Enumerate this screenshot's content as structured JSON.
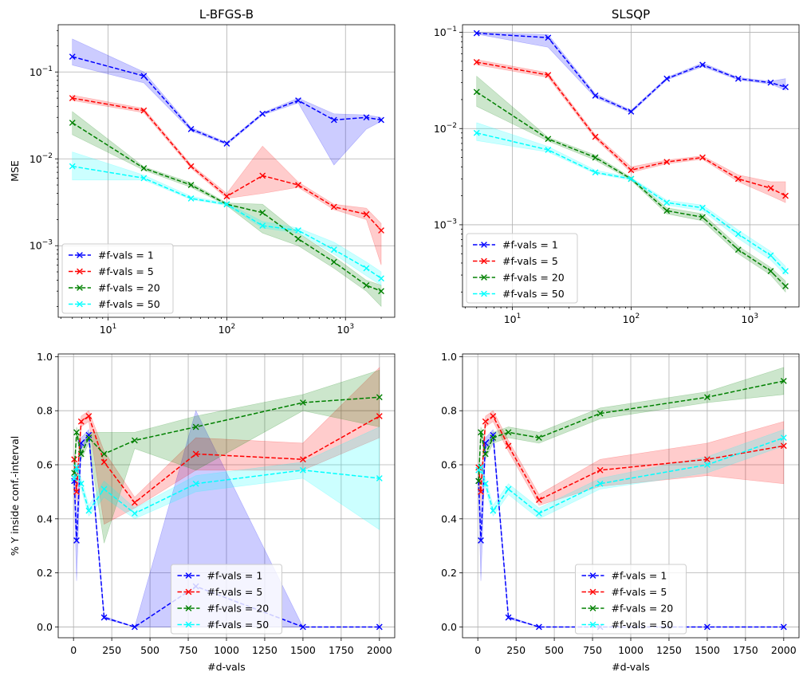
{
  "chart_data": [
    {
      "type": "line",
      "title": "L-BFGS-B",
      "xlabel": "",
      "ylabel": "MSE",
      "xscale": "log",
      "yscale": "log",
      "xlim": [
        3.8,
        2600
      ],
      "ylim": [
        0.00015,
        0.35
      ],
      "grid": true,
      "legend_loc": "lower-left",
      "x": [
        5,
        20,
        50,
        100,
        200,
        400,
        800,
        1500,
        2000
      ],
      "xticks": [
        {
          "v": 10,
          "base": "10",
          "exp": "1"
        },
        {
          "v": 100,
          "base": "10",
          "exp": "2"
        },
        {
          "v": 1000,
          "base": "10",
          "exp": "3"
        }
      ],
      "yticks": [
        {
          "v": 0.001,
          "base": "10",
          "exp": "−3"
        },
        {
          "v": 0.01,
          "base": "10",
          "exp": "−2"
        },
        {
          "v": 0.1,
          "base": "10",
          "exp": "−1"
        }
      ],
      "series": [
        {
          "name": "#f-vals = 1",
          "color": "#0000ff",
          "values": [
            0.15,
            0.09,
            0.022,
            0.015,
            0.033,
            0.047,
            0.028,
            0.03,
            0.028
          ],
          "lower": [
            0.12,
            0.075,
            0.021,
            0.0145,
            0.032,
            0.044,
            0.0085,
            0.022,
            0.027
          ],
          "upper": [
            0.24,
            0.1,
            0.023,
            0.0155,
            0.034,
            0.05,
            0.033,
            0.032,
            0.03
          ]
        },
        {
          "name": "#f-vals = 5",
          "color": "#ff0000",
          "values": [
            0.05,
            0.036,
            0.0082,
            0.0037,
            0.0064,
            0.005,
            0.0028,
            0.0023,
            0.0015
          ],
          "lower": [
            0.047,
            0.034,
            0.0078,
            0.0035,
            0.004,
            0.0047,
            0.0026,
            0.002,
            0.0006
          ],
          "upper": [
            0.054,
            0.038,
            0.0086,
            0.004,
            0.014,
            0.0054,
            0.003,
            0.0027,
            0.0018
          ]
        },
        {
          "name": "#f-vals = 20",
          "color": "#008000",
          "values": [
            0.026,
            0.0078,
            0.005,
            0.003,
            0.0024,
            0.0012,
            0.00065,
            0.00035,
            0.0003
          ],
          "lower": [
            0.019,
            0.0074,
            0.0047,
            0.0029,
            0.0014,
            0.001,
            0.00055,
            0.0003,
            0.0002
          ],
          "upper": [
            0.035,
            0.0081,
            0.0053,
            0.0031,
            0.003,
            0.0014,
            0.00075,
            0.0004,
            0.00035
          ]
        },
        {
          "name": "#f-vals = 50",
          "color": "#00ffff",
          "values": [
            0.0082,
            0.006,
            0.0035,
            0.003,
            0.0017,
            0.0015,
            0.0009,
            0.00055,
            0.00042
          ],
          "lower": [
            0.0057,
            0.0057,
            0.0034,
            0.0029,
            0.0016,
            0.0014,
            0.0008,
            0.00045,
            0.00035
          ],
          "upper": [
            0.012,
            0.0065,
            0.0037,
            0.0031,
            0.0019,
            0.0016,
            0.0011,
            0.00065,
            0.0005
          ]
        }
      ]
    },
    {
      "type": "line",
      "title": "SLSQP",
      "xlabel": "",
      "ylabel": "",
      "xscale": "log",
      "yscale": "log",
      "xlim": [
        3.8,
        2600
      ],
      "ylim": [
        0.00014,
        0.12
      ],
      "grid": true,
      "legend_loc": "lower-left",
      "x": [
        5,
        20,
        50,
        100,
        200,
        400,
        800,
        1500,
        2000
      ],
      "xticks": [
        {
          "v": 10,
          "base": "10",
          "exp": "1"
        },
        {
          "v": 100,
          "base": "10",
          "exp": "2"
        },
        {
          "v": 1000,
          "base": "10",
          "exp": "3"
        }
      ],
      "yticks": [
        {
          "v": 0.001,
          "base": "10",
          "exp": "−3"
        },
        {
          "v": 0.01,
          "base": "10",
          "exp": "−2"
        },
        {
          "v": 0.1,
          "base": "10",
          "exp": "−1"
        }
      ],
      "series": [
        {
          "name": "#f-vals = 1",
          "color": "#0000ff",
          "values": [
            0.098,
            0.088,
            0.022,
            0.015,
            0.033,
            0.046,
            0.033,
            0.03,
            0.027
          ],
          "lower": [
            0.096,
            0.07,
            0.021,
            0.0145,
            0.032,
            0.044,
            0.032,
            0.029,
            0.025
          ],
          "upper": [
            0.1,
            0.095,
            0.023,
            0.0155,
            0.034,
            0.048,
            0.034,
            0.031,
            0.033
          ]
        },
        {
          "name": "#f-vals = 5",
          "color": "#ff0000",
          "values": [
            0.049,
            0.036,
            0.0082,
            0.0037,
            0.0045,
            0.005,
            0.003,
            0.0024,
            0.002
          ],
          "lower": [
            0.046,
            0.034,
            0.0078,
            0.0035,
            0.0043,
            0.0048,
            0.0028,
            0.002,
            0.0017
          ],
          "upper": [
            0.052,
            0.038,
            0.0086,
            0.004,
            0.0047,
            0.0052,
            0.0033,
            0.0028,
            0.0028
          ]
        },
        {
          "name": "#f-vals = 20",
          "color": "#008000",
          "values": [
            0.024,
            0.0078,
            0.005,
            0.003,
            0.0014,
            0.0012,
            0.00055,
            0.00033,
            0.00023
          ],
          "lower": [
            0.017,
            0.0074,
            0.0047,
            0.0029,
            0.0013,
            0.0011,
            0.0005,
            0.0003,
            0.0002
          ],
          "upper": [
            0.035,
            0.0081,
            0.0053,
            0.0031,
            0.0015,
            0.0013,
            0.0006,
            0.00036,
            0.00026
          ]
        },
        {
          "name": "#f-vals = 50",
          "color": "#00ffff",
          "values": [
            0.009,
            0.006,
            0.0035,
            0.003,
            0.0017,
            0.0015,
            0.0008,
            0.00048,
            0.00033
          ],
          "lower": [
            0.0075,
            0.0057,
            0.0034,
            0.0029,
            0.0016,
            0.0014,
            0.00072,
            0.00043,
            0.0003
          ],
          "upper": [
            0.0115,
            0.0065,
            0.0037,
            0.0031,
            0.0018,
            0.0016,
            0.00088,
            0.00053,
            0.00037
          ]
        }
      ]
    },
    {
      "type": "line",
      "title": "",
      "xlabel": "#d-vals",
      "ylabel": "% Y inside conf.-interval",
      "xscale": "linear",
      "yscale": "linear",
      "xlim": [
        -100,
        2100
      ],
      "ylim": [
        -0.04,
        1.01
      ],
      "grid": true,
      "legend_loc": "lower-center",
      "x": [
        5,
        20,
        50,
        100,
        200,
        400,
        800,
        1500,
        2000
      ],
      "xticks": [
        {
          "v": 0,
          "label": "0"
        },
        {
          "v": 250,
          "label": "250"
        },
        {
          "v": 500,
          "label": "500"
        },
        {
          "v": 750,
          "label": "750"
        },
        {
          "v": 1000,
          "label": "1000"
        },
        {
          "v": 1250,
          "label": "1250"
        },
        {
          "v": 1500,
          "label": "1500"
        },
        {
          "v": 1750,
          "label": "1750"
        },
        {
          "v": 2000,
          "label": "2000"
        }
      ],
      "yticks": [
        {
          "v": 0.0,
          "label": "0.0"
        },
        {
          "v": 0.2,
          "label": "0.2"
        },
        {
          "v": 0.4,
          "label": "0.4"
        },
        {
          "v": 0.6,
          "label": "0.6"
        },
        {
          "v": 0.8,
          "label": "0.8"
        },
        {
          "v": 1.0,
          "label": "1.0"
        }
      ],
      "series": [
        {
          "name": "#f-vals = 1",
          "color": "#0000ff",
          "values": [
            0.54,
            0.32,
            0.68,
            0.71,
            0.035,
            0.0,
            0.15,
            0.0,
            0.0
          ],
          "lower": [
            0.5,
            0.17,
            0.66,
            0.69,
            0.03,
            0.0,
            0.0,
            0.0,
            0.0
          ],
          "upper": [
            0.58,
            0.4,
            0.7,
            0.73,
            0.04,
            0.0,
            0.8,
            0.0,
            0.0
          ]
        },
        {
          "name": "#f-vals = 5",
          "color": "#ff0000",
          "values": [
            0.62,
            0.5,
            0.76,
            0.78,
            0.61,
            0.46,
            0.64,
            0.62,
            0.78
          ],
          "lower": [
            0.6,
            0.46,
            0.74,
            0.76,
            0.38,
            0.44,
            0.58,
            0.58,
            0.7
          ],
          "upper": [
            0.64,
            0.54,
            0.78,
            0.8,
            0.65,
            0.48,
            0.7,
            0.68,
            0.96
          ]
        },
        {
          "name": "#f-vals = 20",
          "color": "#008000",
          "values": [
            0.57,
            0.72,
            0.64,
            0.7,
            0.64,
            0.69,
            0.74,
            0.83,
            0.85
          ],
          "lower": [
            0.55,
            0.7,
            0.62,
            0.68,
            0.31,
            0.66,
            0.58,
            0.8,
            0.74
          ],
          "upper": [
            0.59,
            0.74,
            0.66,
            0.72,
            0.72,
            0.72,
            0.78,
            0.86,
            0.95
          ]
        },
        {
          "name": "#f-vals = 50",
          "color": "#00ffff",
          "values": [
            0.55,
            0.59,
            0.53,
            0.43,
            0.51,
            0.42,
            0.53,
            0.58,
            0.55
          ],
          "lower": [
            0.53,
            0.57,
            0.51,
            0.41,
            0.48,
            0.4,
            0.5,
            0.55,
            0.36
          ],
          "upper": [
            0.57,
            0.61,
            0.55,
            0.45,
            0.54,
            0.44,
            0.56,
            0.61,
            0.74
          ]
        }
      ]
    },
    {
      "type": "line",
      "title": "",
      "xlabel": "#d-vals",
      "ylabel": "",
      "xscale": "linear",
      "yscale": "linear",
      "xlim": [
        -100,
        2100
      ],
      "ylim": [
        -0.04,
        1.01
      ],
      "grid": true,
      "legend_loc": "lower-center",
      "x": [
        5,
        20,
        50,
        100,
        200,
        400,
        800,
        1500,
        2000
      ],
      "xticks": [
        {
          "v": 0,
          "label": "0"
        },
        {
          "v": 250,
          "label": "250"
        },
        {
          "v": 500,
          "label": "500"
        },
        {
          "v": 750,
          "label": "750"
        },
        {
          "v": 1000,
          "label": "1000"
        },
        {
          "v": 1250,
          "label": "1250"
        },
        {
          "v": 1500,
          "label": "1500"
        },
        {
          "v": 1750,
          "label": "1750"
        },
        {
          "v": 2000,
          "label": "2000"
        }
      ],
      "yticks": [
        {
          "v": 0.0,
          "label": "0.0"
        },
        {
          "v": 0.2,
          "label": "0.2"
        },
        {
          "v": 0.4,
          "label": "0.4"
        },
        {
          "v": 0.6,
          "label": "0.6"
        },
        {
          "v": 0.8,
          "label": "0.8"
        },
        {
          "v": 1.0,
          "label": "1.0"
        }
      ],
      "series": [
        {
          "name": "#f-vals = 1",
          "color": "#0000ff",
          "values": [
            0.54,
            0.32,
            0.68,
            0.71,
            0.035,
            0.0,
            0.0,
            0.0,
            0.0
          ],
          "lower": [
            0.5,
            0.17,
            0.66,
            0.69,
            0.03,
            0.0,
            0.0,
            0.0,
            0.0
          ],
          "upper": [
            0.58,
            0.4,
            0.7,
            0.73,
            0.04,
            0.0,
            0.0,
            0.0,
            0.0
          ]
        },
        {
          "name": "#f-vals = 5",
          "color": "#ff0000",
          "values": [
            0.59,
            0.5,
            0.76,
            0.78,
            0.67,
            0.47,
            0.58,
            0.62,
            0.67
          ],
          "lower": [
            0.57,
            0.46,
            0.74,
            0.76,
            0.65,
            0.45,
            0.52,
            0.56,
            0.53
          ],
          "upper": [
            0.61,
            0.54,
            0.78,
            0.8,
            0.69,
            0.49,
            0.62,
            0.68,
            0.76
          ]
        },
        {
          "name": "#f-vals = 20",
          "color": "#008000",
          "values": [
            0.54,
            0.72,
            0.64,
            0.7,
            0.72,
            0.7,
            0.79,
            0.85,
            0.91
          ],
          "lower": [
            0.52,
            0.7,
            0.62,
            0.68,
            0.7,
            0.68,
            0.77,
            0.83,
            0.86
          ],
          "upper": [
            0.56,
            0.74,
            0.66,
            0.72,
            0.74,
            0.72,
            0.81,
            0.87,
            0.96
          ]
        },
        {
          "name": "#f-vals = 50",
          "color": "#00ffff",
          "values": [
            0.58,
            0.59,
            0.53,
            0.43,
            0.51,
            0.42,
            0.53,
            0.6,
            0.7
          ],
          "lower": [
            0.56,
            0.57,
            0.51,
            0.41,
            0.49,
            0.4,
            0.51,
            0.57,
            0.67
          ],
          "upper": [
            0.6,
            0.61,
            0.55,
            0.45,
            0.53,
            0.44,
            0.55,
            0.63,
            0.73
          ]
        }
      ]
    }
  ]
}
